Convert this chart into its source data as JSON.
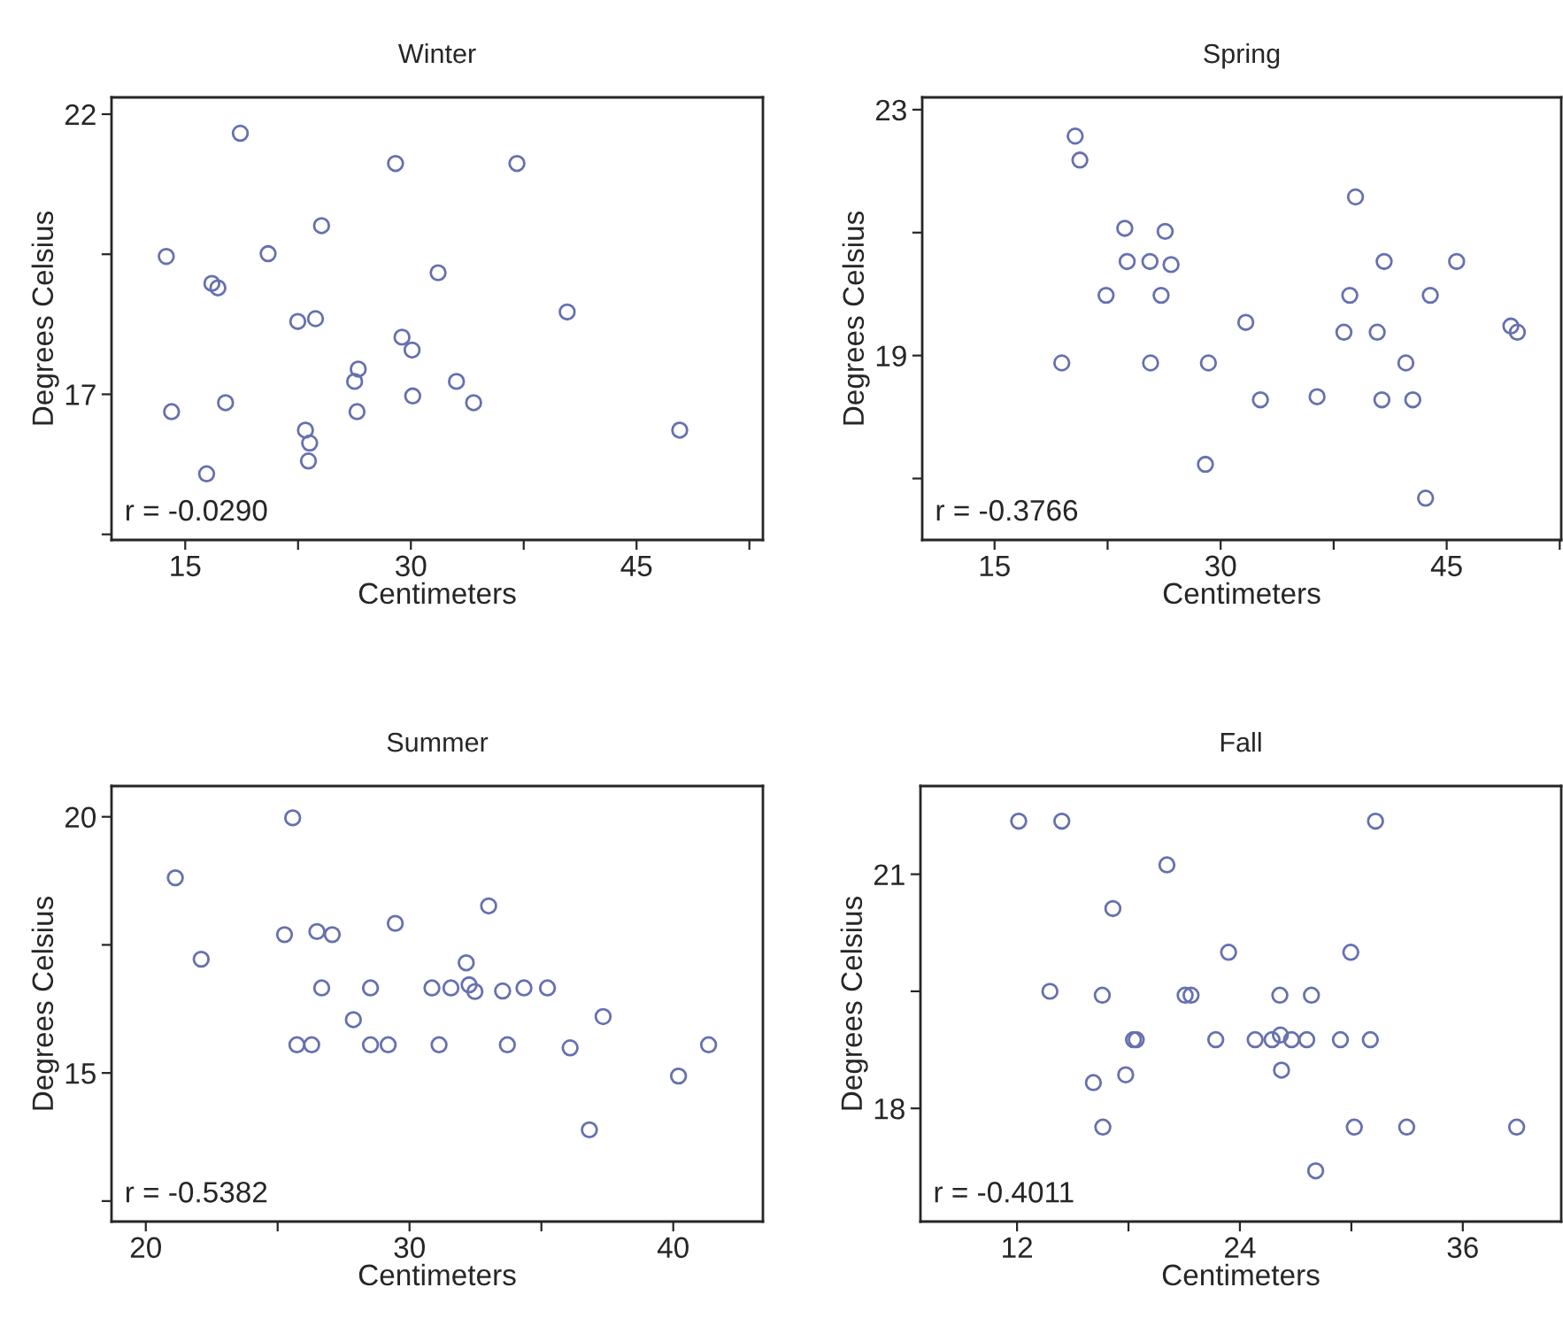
{
  "chart_data": [
    {
      "type": "scatter",
      "title": "Winter",
      "xlabel": "Centimeters",
      "ylabel": "Degrees Celsius",
      "annotations": [
        "r = -0.0290"
      ],
      "marker": "circle",
      "grid": false,
      "legend": false,
      "xlim": [
        10.1,
        53.4
      ],
      "xticks": [
        15,
        {
          "value": 22.5,
          "label": null
        },
        30,
        {
          "value": 37.5,
          "label": null
        },
        45,
        {
          "value": 52.5,
          "label": null
        }
      ],
      "ylim": [
        14.4,
        22.3
      ],
      "yticks": [
        {
          "value": 14.5,
          "label": null
        },
        17,
        {
          "value": 19.5,
          "label": null
        },
        22
      ],
      "series": [
        {
          "color": "#6670b0",
          "x": [
            18.66,
            28.98,
            37.05,
            24.06,
            13.74,
            20.51,
            31.81,
            16.77,
            17.17,
            22.48,
            23.66,
            40.39,
            29.41,
            30.08,
            26.5,
            26.26,
            33.03,
            30.12,
            34.17,
            17.68,
            14.09,
            26.42,
            22.99,
            23.27,
            23.19,
            47.87,
            16.42
          ],
          "values": [
            21.66,
            21.12,
            21.12,
            20.01,
            19.46,
            19.51,
            19.17,
            18.98,
            18.9,
            18.3,
            18.35,
            18.47,
            18.02,
            17.79,
            17.45,
            17.23,
            17.23,
            16.97,
            16.85,
            16.85,
            16.69,
            16.69,
            16.36,
            16.13,
            15.81,
            16.36,
            15.58
          ]
        }
      ]
    },
    {
      "type": "scatter",
      "title": "Spring",
      "xlabel": "Centimeters",
      "ylabel": "Degrees Celsius",
      "annotations": [
        "r = -0.3766"
      ],
      "marker": "circle",
      "grid": false,
      "legend": false,
      "xlim": [
        10.2,
        52.6
      ],
      "xticks": [
        15,
        {
          "value": 22.5,
          "label": null
        },
        30,
        {
          "value": 37.5,
          "label": null
        },
        45,
        {
          "value": 52.5,
          "label": null
        }
      ],
      "ylim": [
        16.0,
        23.2
      ],
      "yticks": [
        {
          "value": 17,
          "label": null
        },
        19,
        {
          "value": 21,
          "label": null
        },
        23
      ],
      "series": [
        {
          "color": "#6670b0",
          "x": [
            20.35,
            20.66,
            38.95,
            23.64,
            26.32,
            23.8,
            25.31,
            26.71,
            40.85,
            45.66,
            22.4,
            26.05,
            38.57,
            43.91,
            31.67,
            38.18,
            40.39,
            49.26,
            49.69,
            19.46,
            25.35,
            29.19,
            42.29,
            32.64,
            36.4,
            40.7,
            42.75,
            28.99,
            43.6
          ],
          "values": [
            22.57,
            22.18,
            21.58,
            21.07,
            21.02,
            20.53,
            20.53,
            20.48,
            20.53,
            20.53,
            19.98,
            19.98,
            19.98,
            19.98,
            19.54,
            19.38,
            19.38,
            19.48,
            19.38,
            18.88,
            18.88,
            18.88,
            18.88,
            18.28,
            18.33,
            18.28,
            18.28,
            17.23,
            16.68
          ]
        }
      ]
    },
    {
      "type": "scatter",
      "title": "Summer",
      "xlabel": "Centimeters",
      "ylabel": "Degrees Celsius",
      "annotations": [
        "r = -0.5382"
      ],
      "marker": "circle",
      "grid": false,
      "legend": false,
      "xlim": [
        18.7,
        43.4
      ],
      "xticks": [
        20,
        {
          "value": 25,
          "label": null
        },
        30,
        {
          "value": 35,
          "label": null
        },
        40
      ],
      "ylim": [
        12.1,
        20.6
      ],
      "yticks": [
        {
          "value": 12.5,
          "label": null
        },
        15,
        {
          "value": 17.5,
          "label": null
        },
        20
      ],
      "series": [
        {
          "color": "#6670b0",
          "x": [
            25.57,
            21.12,
            22.1,
            33.0,
            25.26,
            26.49,
            27.07,
            29.46,
            32.15,
            26.67,
            28.52,
            30.85,
            31.57,
            32.26,
            32.48,
            33.53,
            34.34,
            35.23,
            27.87,
            37.34,
            25.73,
            26.29,
            28.52,
            29.19,
            31.12,
            33.71,
            36.09,
            41.34,
            40.2,
            36.82
          ],
          "values": [
            19.98,
            18.81,
            17.22,
            18.26,
            17.7,
            17.76,
            17.7,
            17.92,
            17.15,
            16.66,
            16.66,
            16.66,
            16.66,
            16.72,
            16.59,
            16.6,
            16.66,
            16.66,
            16.04,
            16.1,
            15.55,
            15.55,
            15.55,
            15.55,
            15.55,
            15.55,
            15.49,
            15.55,
            14.94,
            13.89
          ]
        }
      ]
    },
    {
      "type": "scatter",
      "title": "Fall",
      "xlabel": "Centimeters",
      "ylabel": "Degrees Celsius",
      "annotations": [
        "r = -0.4011"
      ],
      "marker": "circle",
      "grid": false,
      "legend": false,
      "xlim": [
        6.8,
        41.3
      ],
      "xticks": [
        12,
        {
          "value": 18,
          "label": null
        },
        24,
        {
          "value": 30,
          "label": null
        },
        36
      ],
      "ylim": [
        16.55,
        22.13
      ],
      "yticks": [
        18,
        {
          "value": 19.5,
          "label": null
        },
        21
      ],
      "series": [
        {
          "color": "#6670b0",
          "x": [
            12.09,
            14.41,
            31.3,
            20.07,
            17.16,
            23.39,
            29.97,
            13.77,
            16.59,
            21.05,
            21.37,
            26.15,
            27.85,
            18.27,
            18.42,
            22.7,
            24.82,
            25.73,
            26.18,
            26.78,
            27.6,
            29.41,
            31.02,
            26.24,
            17.85,
            16.11,
            16.62,
            30.16,
            32.98,
            38.9,
            28.08
          ],
          "values": [
            21.68,
            21.68,
            21.68,
            21.12,
            20.56,
            20.0,
            20.0,
            19.5,
            19.45,
            19.45,
            19.45,
            19.45,
            19.45,
            18.88,
            18.88,
            18.88,
            18.88,
            18.88,
            18.94,
            18.88,
            18.88,
            18.88,
            18.88,
            18.49,
            18.43,
            18.33,
            17.76,
            17.76,
            17.76,
            17.76,
            17.2
          ]
        }
      ]
    }
  ]
}
